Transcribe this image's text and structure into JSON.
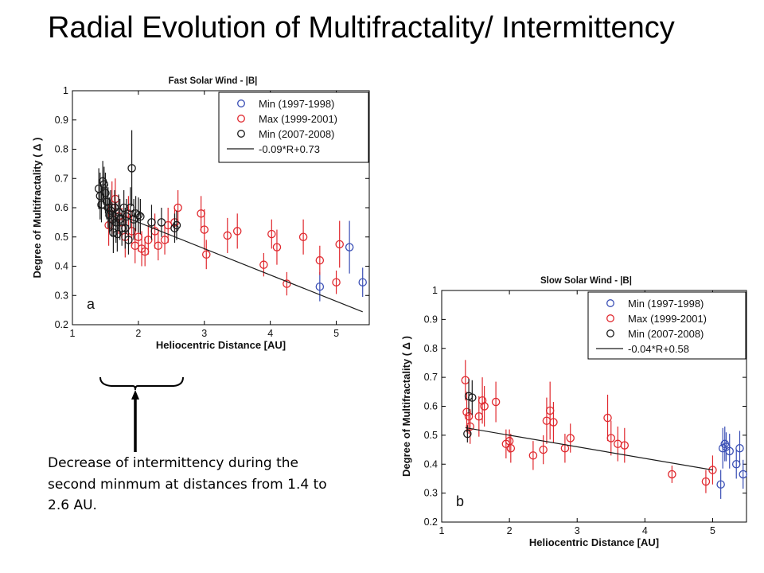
{
  "slide": {
    "title": "Radial Evolution of Multifractality/ Intermittency",
    "caption": "Decrease of intermittency during the second minmum at distances from 1.4 to 2.6 AU."
  },
  "colors": {
    "blue": "#3a4fb5",
    "red": "#e0282e",
    "black": "#1a1a1a"
  },
  "chart_data": [
    {
      "type": "scatter",
      "title": "Fast Solar Wind - |B|",
      "xlabel": "Heliocentric Distance [AU]",
      "ylabel": "Degree of Multifractality ( Δ )",
      "xlim": [
        1,
        5.5
      ],
      "ylim": [
        0.2,
        1
      ],
      "xticks": [
        1,
        2,
        3,
        4,
        5
      ],
      "yticks": [
        0.2,
        0.3,
        0.4,
        0.5,
        0.6,
        0.7,
        0.8,
        0.9,
        1
      ],
      "panel_label": "a",
      "legend_position": "top-right",
      "grid": false,
      "fit": {
        "label": "-0.09*R+0.73",
        "slope": -0.09,
        "intercept": 0.73,
        "x_range": [
          1.4,
          5.4
        ]
      },
      "series": [
        {
          "name": "Min (1997-1998)",
          "color": "blue",
          "points": [
            {
              "x": 4.75,
              "y": 0.33,
              "err": 0.05
            },
            {
              "x": 5.2,
              "y": 0.465,
              "err": 0.09
            },
            {
              "x": 5.4,
              "y": 0.345,
              "err": 0.05
            }
          ]
        },
        {
          "name": "Max (1999-2001)",
          "color": "red",
          "points": [
            {
              "x": 1.55,
              "y": 0.54,
              "err": 0.07
            },
            {
              "x": 1.6,
              "y": 0.6,
              "err": 0.09
            },
            {
              "x": 1.65,
              "y": 0.63,
              "err": 0.07
            },
            {
              "x": 1.7,
              "y": 0.57,
              "err": 0.06
            },
            {
              "x": 1.75,
              "y": 0.55,
              "err": 0.05
            },
            {
              "x": 1.8,
              "y": 0.5,
              "err": 0.07
            },
            {
              "x": 1.85,
              "y": 0.58,
              "err": 0.06
            },
            {
              "x": 1.9,
              "y": 0.52,
              "err": 0.05
            },
            {
              "x": 1.95,
              "y": 0.47,
              "err": 0.06
            },
            {
              "x": 2.0,
              "y": 0.5,
              "err": 0.05
            },
            {
              "x": 2.05,
              "y": 0.46,
              "err": 0.06
            },
            {
              "x": 2.1,
              "y": 0.45,
              "err": 0.05
            },
            {
              "x": 2.15,
              "y": 0.49,
              "err": 0.05
            },
            {
              "x": 2.25,
              "y": 0.52,
              "err": 0.06
            },
            {
              "x": 2.3,
              "y": 0.47,
              "err": 0.05
            },
            {
              "x": 2.4,
              "y": 0.49,
              "err": 0.05
            },
            {
              "x": 2.45,
              "y": 0.54,
              "err": 0.06
            },
            {
              "x": 2.55,
              "y": 0.55,
              "err": 0.05
            },
            {
              "x": 2.6,
              "y": 0.6,
              "err": 0.06
            },
            {
              "x": 2.95,
              "y": 0.58,
              "err": 0.06
            },
            {
              "x": 3.0,
              "y": 0.525,
              "err": 0.07
            },
            {
              "x": 3.03,
              "y": 0.44,
              "err": 0.05
            },
            {
              "x": 3.35,
              "y": 0.505,
              "err": 0.06
            },
            {
              "x": 3.5,
              "y": 0.52,
              "err": 0.06
            },
            {
              "x": 3.9,
              "y": 0.405,
              "err": 0.04
            },
            {
              "x": 4.02,
              "y": 0.51,
              "err": 0.05
            },
            {
              "x": 4.1,
              "y": 0.465,
              "err": 0.06
            },
            {
              "x": 4.25,
              "y": 0.34,
              "err": 0.04
            },
            {
              "x": 4.5,
              "y": 0.5,
              "err": 0.06
            },
            {
              "x": 4.75,
              "y": 0.42,
              "err": 0.05
            },
            {
              "x": 5.0,
              "y": 0.345,
              "err": 0.04
            },
            {
              "x": 5.05,
              "y": 0.475,
              "err": 0.08
            }
          ]
        },
        {
          "name": "Min (2007-2008)",
          "color": "black",
          "points": [
            {
              "x": 1.4,
              "y": 0.665,
              "err": 0.07
            },
            {
              "x": 1.42,
              "y": 0.64,
              "err": 0.08
            },
            {
              "x": 1.44,
              "y": 0.61,
              "err": 0.06
            },
            {
              "x": 1.46,
              "y": 0.69,
              "err": 0.07
            },
            {
              "x": 1.48,
              "y": 0.68,
              "err": 0.06
            },
            {
              "x": 1.5,
              "y": 0.65,
              "err": 0.07
            },
            {
              "x": 1.52,
              "y": 0.62,
              "err": 0.06
            },
            {
              "x": 1.54,
              "y": 0.6,
              "err": 0.07
            },
            {
              "x": 1.56,
              "y": 0.575,
              "err": 0.06
            },
            {
              "x": 1.58,
              "y": 0.59,
              "err": 0.07
            },
            {
              "x": 1.6,
              "y": 0.56,
              "err": 0.06
            },
            {
              "x": 1.62,
              "y": 0.515,
              "err": 0.07
            },
            {
              "x": 1.64,
              "y": 0.6,
              "err": 0.06
            },
            {
              "x": 1.66,
              "y": 0.55,
              "err": 0.07
            },
            {
              "x": 1.68,
              "y": 0.51,
              "err": 0.06
            },
            {
              "x": 1.7,
              "y": 0.585,
              "err": 0.06
            },
            {
              "x": 1.72,
              "y": 0.56,
              "err": 0.07
            },
            {
              "x": 1.75,
              "y": 0.53,
              "err": 0.06
            },
            {
              "x": 1.78,
              "y": 0.6,
              "err": 0.06
            },
            {
              "x": 1.8,
              "y": 0.53,
              "err": 0.07
            },
            {
              "x": 1.82,
              "y": 0.57,
              "err": 0.06
            },
            {
              "x": 1.85,
              "y": 0.49,
              "err": 0.05
            },
            {
              "x": 1.88,
              "y": 0.6,
              "err": 0.07
            },
            {
              "x": 1.9,
              "y": 0.735,
              "err": 0.13
            },
            {
              "x": 1.93,
              "y": 0.56,
              "err": 0.07
            },
            {
              "x": 1.96,
              "y": 0.58,
              "err": 0.06
            },
            {
              "x": 2.0,
              "y": 0.575,
              "err": 0.06
            },
            {
              "x": 2.03,
              "y": 0.57,
              "err": 0.06
            },
            {
              "x": 2.2,
              "y": 0.55,
              "err": 0.06
            },
            {
              "x": 2.35,
              "y": 0.55,
              "err": 0.05
            },
            {
              "x": 2.55,
              "y": 0.53,
              "err": 0.05
            },
            {
              "x": 2.58,
              "y": 0.54,
              "err": 0.05
            }
          ]
        }
      ]
    },
    {
      "type": "scatter",
      "title": "Slow Solar Wind -  |B|",
      "xlabel": "Heliocentric Distance [AU]",
      "ylabel": "Degree of Multifractality ( Δ )",
      "xlim": [
        1,
        5.5
      ],
      "ylim": [
        0.2,
        1
      ],
      "xticks": [
        1,
        2,
        3,
        4,
        5
      ],
      "yticks": [
        0.2,
        0.3,
        0.4,
        0.5,
        0.6,
        0.7,
        0.8,
        0.9,
        1
      ],
      "panel_label": "b",
      "legend_position": "top-right",
      "grid": false,
      "fit": {
        "label": "-0.04*R+0.58",
        "slope": -0.04,
        "intercept": 0.58,
        "x_range": [
          1.35,
          5.0
        ]
      },
      "series": [
        {
          "name": "Min (1997-1998)",
          "color": "blue",
          "points": [
            {
              "x": 5.12,
              "y": 0.33,
              "err": 0.05
            },
            {
              "x": 5.15,
              "y": 0.455,
              "err": 0.07
            },
            {
              "x": 5.18,
              "y": 0.47,
              "err": 0.06
            },
            {
              "x": 5.2,
              "y": 0.46,
              "err": 0.05
            },
            {
              "x": 5.25,
              "y": 0.445,
              "err": 0.06
            },
            {
              "x": 5.35,
              "y": 0.4,
              "err": 0.05
            },
            {
              "x": 5.4,
              "y": 0.455,
              "err": 0.06
            },
            {
              "x": 5.45,
              "y": 0.365,
              "err": 0.05
            }
          ]
        },
        {
          "name": "Max (1999-2001)",
          "color": "red",
          "points": [
            {
              "x": 1.35,
              "y": 0.69,
              "err": 0.07
            },
            {
              "x": 1.37,
              "y": 0.58,
              "err": 0.07
            },
            {
              "x": 1.4,
              "y": 0.565,
              "err": 0.06
            },
            {
              "x": 1.42,
              "y": 0.53,
              "err": 0.06
            },
            {
              "x": 1.55,
              "y": 0.565,
              "err": 0.07
            },
            {
              "x": 1.6,
              "y": 0.62,
              "err": 0.08
            },
            {
              "x": 1.63,
              "y": 0.6,
              "err": 0.07
            },
            {
              "x": 1.8,
              "y": 0.615,
              "err": 0.07
            },
            {
              "x": 1.95,
              "y": 0.47,
              "err": 0.05
            },
            {
              "x": 2.0,
              "y": 0.48,
              "err": 0.04
            },
            {
              "x": 2.02,
              "y": 0.455,
              "err": 0.05
            },
            {
              "x": 2.35,
              "y": 0.43,
              "err": 0.05
            },
            {
              "x": 2.5,
              "y": 0.45,
              "err": 0.05
            },
            {
              "x": 2.55,
              "y": 0.55,
              "err": 0.08
            },
            {
              "x": 2.6,
              "y": 0.585,
              "err": 0.1
            },
            {
              "x": 2.65,
              "y": 0.545,
              "err": 0.07
            },
            {
              "x": 2.82,
              "y": 0.455,
              "err": 0.05
            },
            {
              "x": 2.9,
              "y": 0.49,
              "err": 0.05
            },
            {
              "x": 3.45,
              "y": 0.56,
              "err": 0.08
            },
            {
              "x": 3.5,
              "y": 0.49,
              "err": 0.06
            },
            {
              "x": 3.6,
              "y": 0.47,
              "err": 0.06
            },
            {
              "x": 3.7,
              "y": 0.465,
              "err": 0.06
            },
            {
              "x": 4.4,
              "y": 0.365,
              "err": 0.03
            },
            {
              "x": 4.9,
              "y": 0.34,
              "err": 0.04
            },
            {
              "x": 5.0,
              "y": 0.38,
              "err": 0.05
            }
          ]
        },
        {
          "name": "Min (2007-2008)",
          "color": "black",
          "points": [
            {
              "x": 1.4,
              "y": 0.635,
              "err": 0.06
            },
            {
              "x": 1.45,
              "y": 0.63,
              "err": 0.06
            },
            {
              "x": 1.38,
              "y": 0.505,
              "err": 0.03
            }
          ]
        }
      ]
    }
  ]
}
